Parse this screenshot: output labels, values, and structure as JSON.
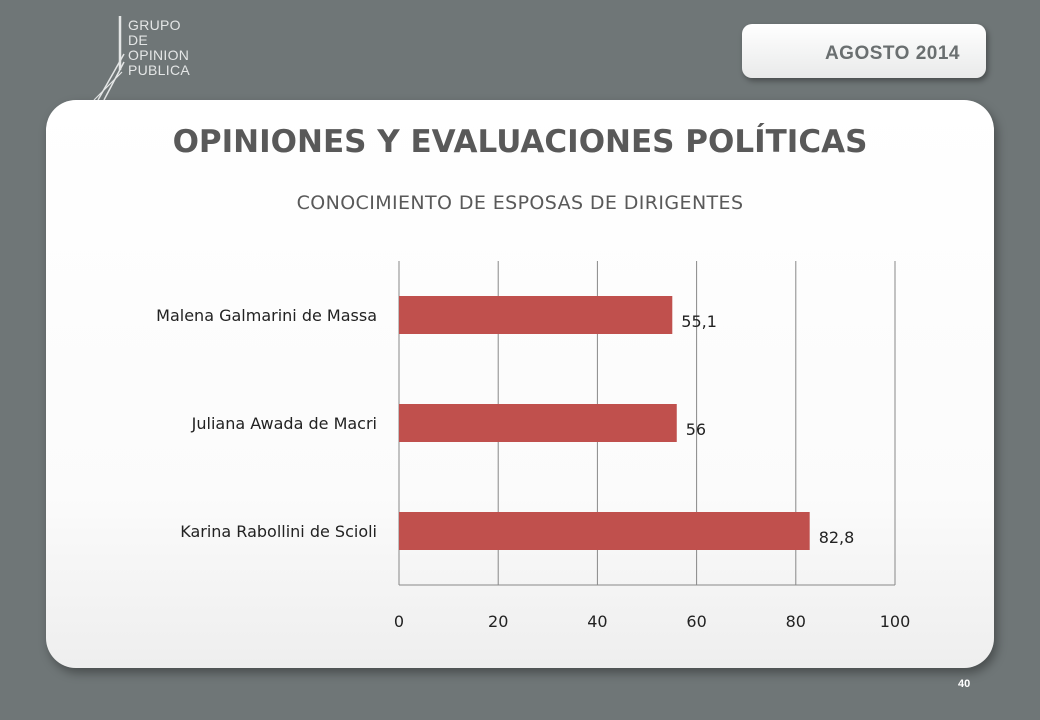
{
  "logo": {
    "lines": [
      "GRUPO",
      "DE",
      "OPINION",
      "PUBLICA"
    ]
  },
  "header": {
    "date": "AGOSTO  2014"
  },
  "slide": {
    "title": "OPINIONES Y EVALUACIONES POLÍTICAS",
    "subtitle": "CONOCIMIENTO DE ESPOSAS DE DIRIGENTES",
    "page_number": "40"
  },
  "colors": {
    "background": "#6f7677",
    "bar": "#c0504d",
    "grid": "#888888"
  },
  "chart_data": {
    "type": "bar",
    "orientation": "horizontal",
    "categories": [
      "Malena Galmarini de Massa",
      "Juliana Awada de Macri",
      "Karina Rabollini de Scioli"
    ],
    "values": [
      55.1,
      56,
      82.8
    ],
    "value_labels": [
      "55,1",
      "56",
      "82,8"
    ],
    "xlim": [
      0,
      100
    ],
    "xticks": [
      0,
      20,
      40,
      60,
      80,
      100
    ],
    "grid": true,
    "legend": "none"
  }
}
